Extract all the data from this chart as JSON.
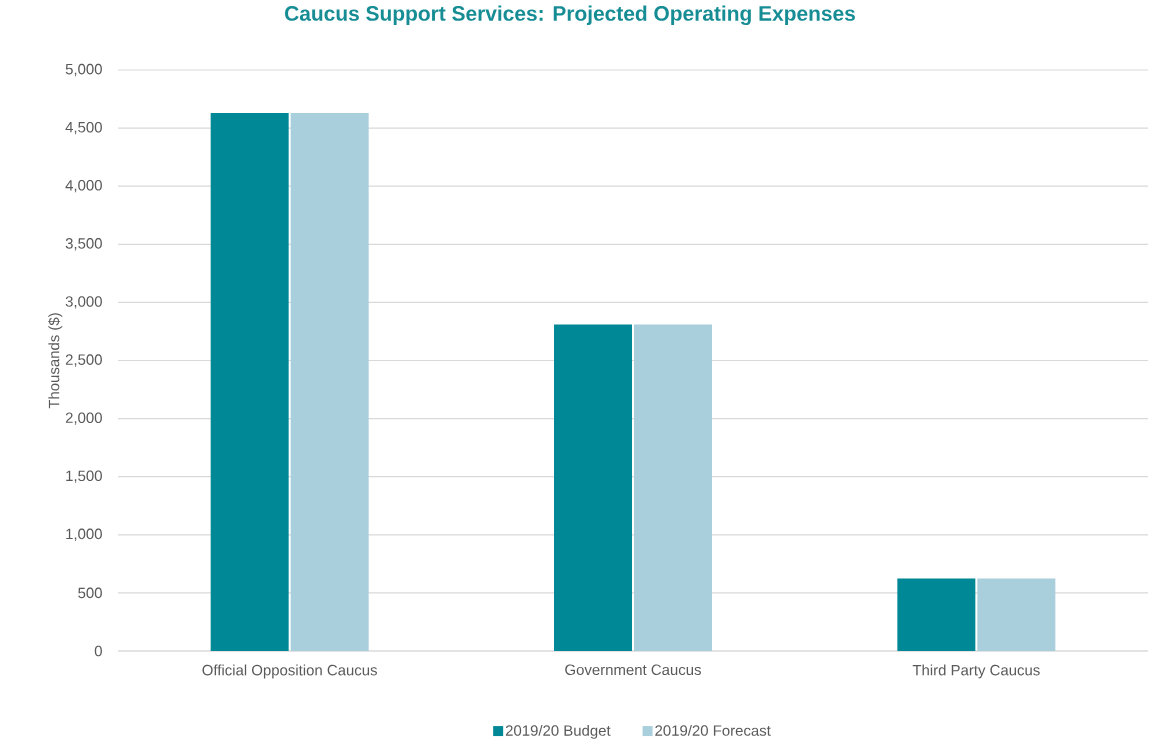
{
  "chart_data": {
    "type": "bar",
    "title": "Caucus Support Services: Projected Operating Expenses",
    "ylabel": "Thousands ($)",
    "categories": [
      "Official Opposition Caucus",
      "Government Caucus",
      "Third Party Caucus"
    ],
    "series": [
      {
        "name": "2019/20 Budget",
        "color": "#008896",
        "values": [
          4630,
          2810,
          625
        ]
      },
      {
        "name": "2019/20 Forecast",
        "color": "#a9cedc",
        "values": [
          4630,
          2810,
          625
        ]
      }
    ],
    "ylim": [
      0,
      5000
    ],
    "yticks": [
      {
        "value": 0,
        "label": "0"
      },
      {
        "value": 500,
        "label": "500"
      },
      {
        "value": 1000,
        "label": "1,000"
      },
      {
        "value": 1500,
        "label": "1,500"
      },
      {
        "value": 2000,
        "label": "2,000"
      },
      {
        "value": 2500,
        "label": "2,500"
      },
      {
        "value": 3000,
        "label": "3,000"
      },
      {
        "value": 3500,
        "label": "3,500"
      },
      {
        "value": 4000,
        "label": "4,000"
      },
      {
        "value": 4500,
        "label": "4,500"
      },
      {
        "value": 5000,
        "label": "5,000"
      }
    ],
    "grid": "y",
    "legend": "bottom"
  }
}
